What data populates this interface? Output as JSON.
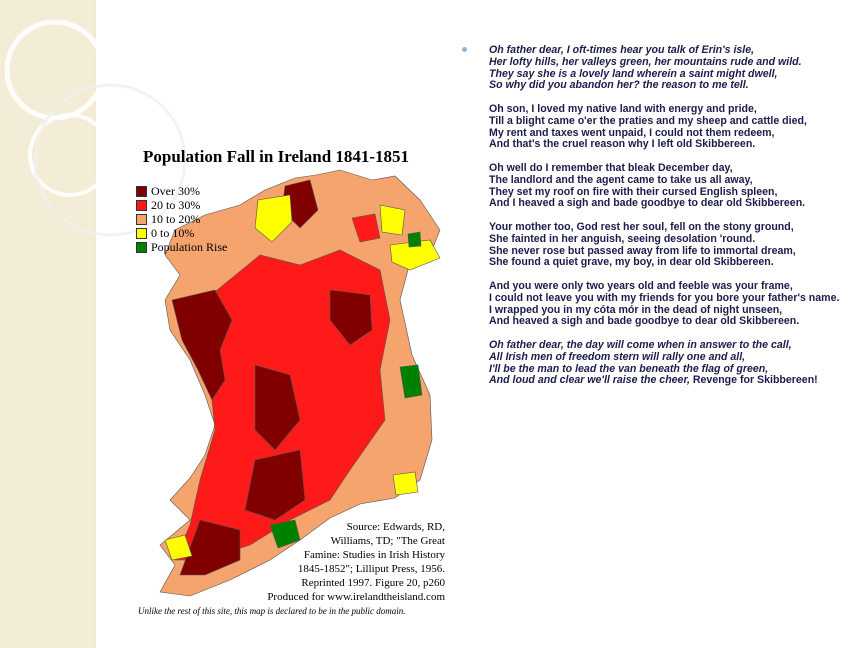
{
  "map": {
    "title": "Population Fall in Ireland 1841-1851",
    "legend": [
      "Over 30%",
      "20 to 30%",
      "10 to 20%",
      "0 to 10%",
      "Population Rise"
    ],
    "source_lines": [
      "Source: Edwards, RD,",
      "Williams, TD; \"The Great",
      "Famine: Studies in Irish History",
      "1845-1852\"; Lilliput Press, 1956.",
      "Reprinted 1997. Figure 20, p260",
      "Produced for www.irelandtheisland.com"
    ],
    "footer": "Unlike the rest of this site, this map is declared to be in the public domain."
  },
  "poem": {
    "stanzas": [
      {
        "italic": true,
        "lines": [
          "Oh father dear, I oft-times hear you talk of Erin's isle,",
          "Her lofty hills, her valleys green, her mountains rude and wild.",
          "They say she is a lovely land wherein a saint might dwell,",
          "So why did you abandon her? the reason to me tell."
        ]
      },
      {
        "italic": false,
        "lines": [
          "Oh son, I loved my native land with energy and pride,",
          "Till a blight came o'er the praties and my sheep and cattle died,",
          "My rent and taxes went unpaid, I could not them redeem,",
          "And that's the cruel reason why I left old Skibbereen."
        ]
      },
      {
        "italic": false,
        "lines": [
          "Oh well do I remember that bleak December day,",
          "The landlord and the agent came to take us all away,",
          "They set my roof on fire with their cursed English spleen,",
          "And I heaved a sigh and bade goodbye to dear old Skibbereen."
        ]
      },
      {
        "italic": false,
        "lines": [
          "Your mother too, God rest her soul, fell on the stony ground,",
          "She fainted in her anguish, seeing desolation 'round.",
          "She never rose but passed away from life to immortal dream,",
          "She found a quiet grave, my boy, in dear old Skibbereen."
        ]
      },
      {
        "italic": false,
        "lines": [
          "And you were only two years old and feeble was your frame,",
          "I could not leave you with my friends for you bore your father's name.",
          "I wrapped you in my cóta mór in the dead of night unseen,",
          "And heaved a sigh and bade goodbye to dear old Skibbereen."
        ]
      },
      {
        "italic": true,
        "lines": [
          "Oh father dear, the day will come when in answer to the call,",
          "All Irish men of freedom stern will rally one and all,",
          "I'll be the man to lead the van beneath the flag of green,",
          "And loud and clear we'll raise the cheer,"
        ]
      }
    ],
    "closing": "Revenge for Skibbereen!"
  }
}
